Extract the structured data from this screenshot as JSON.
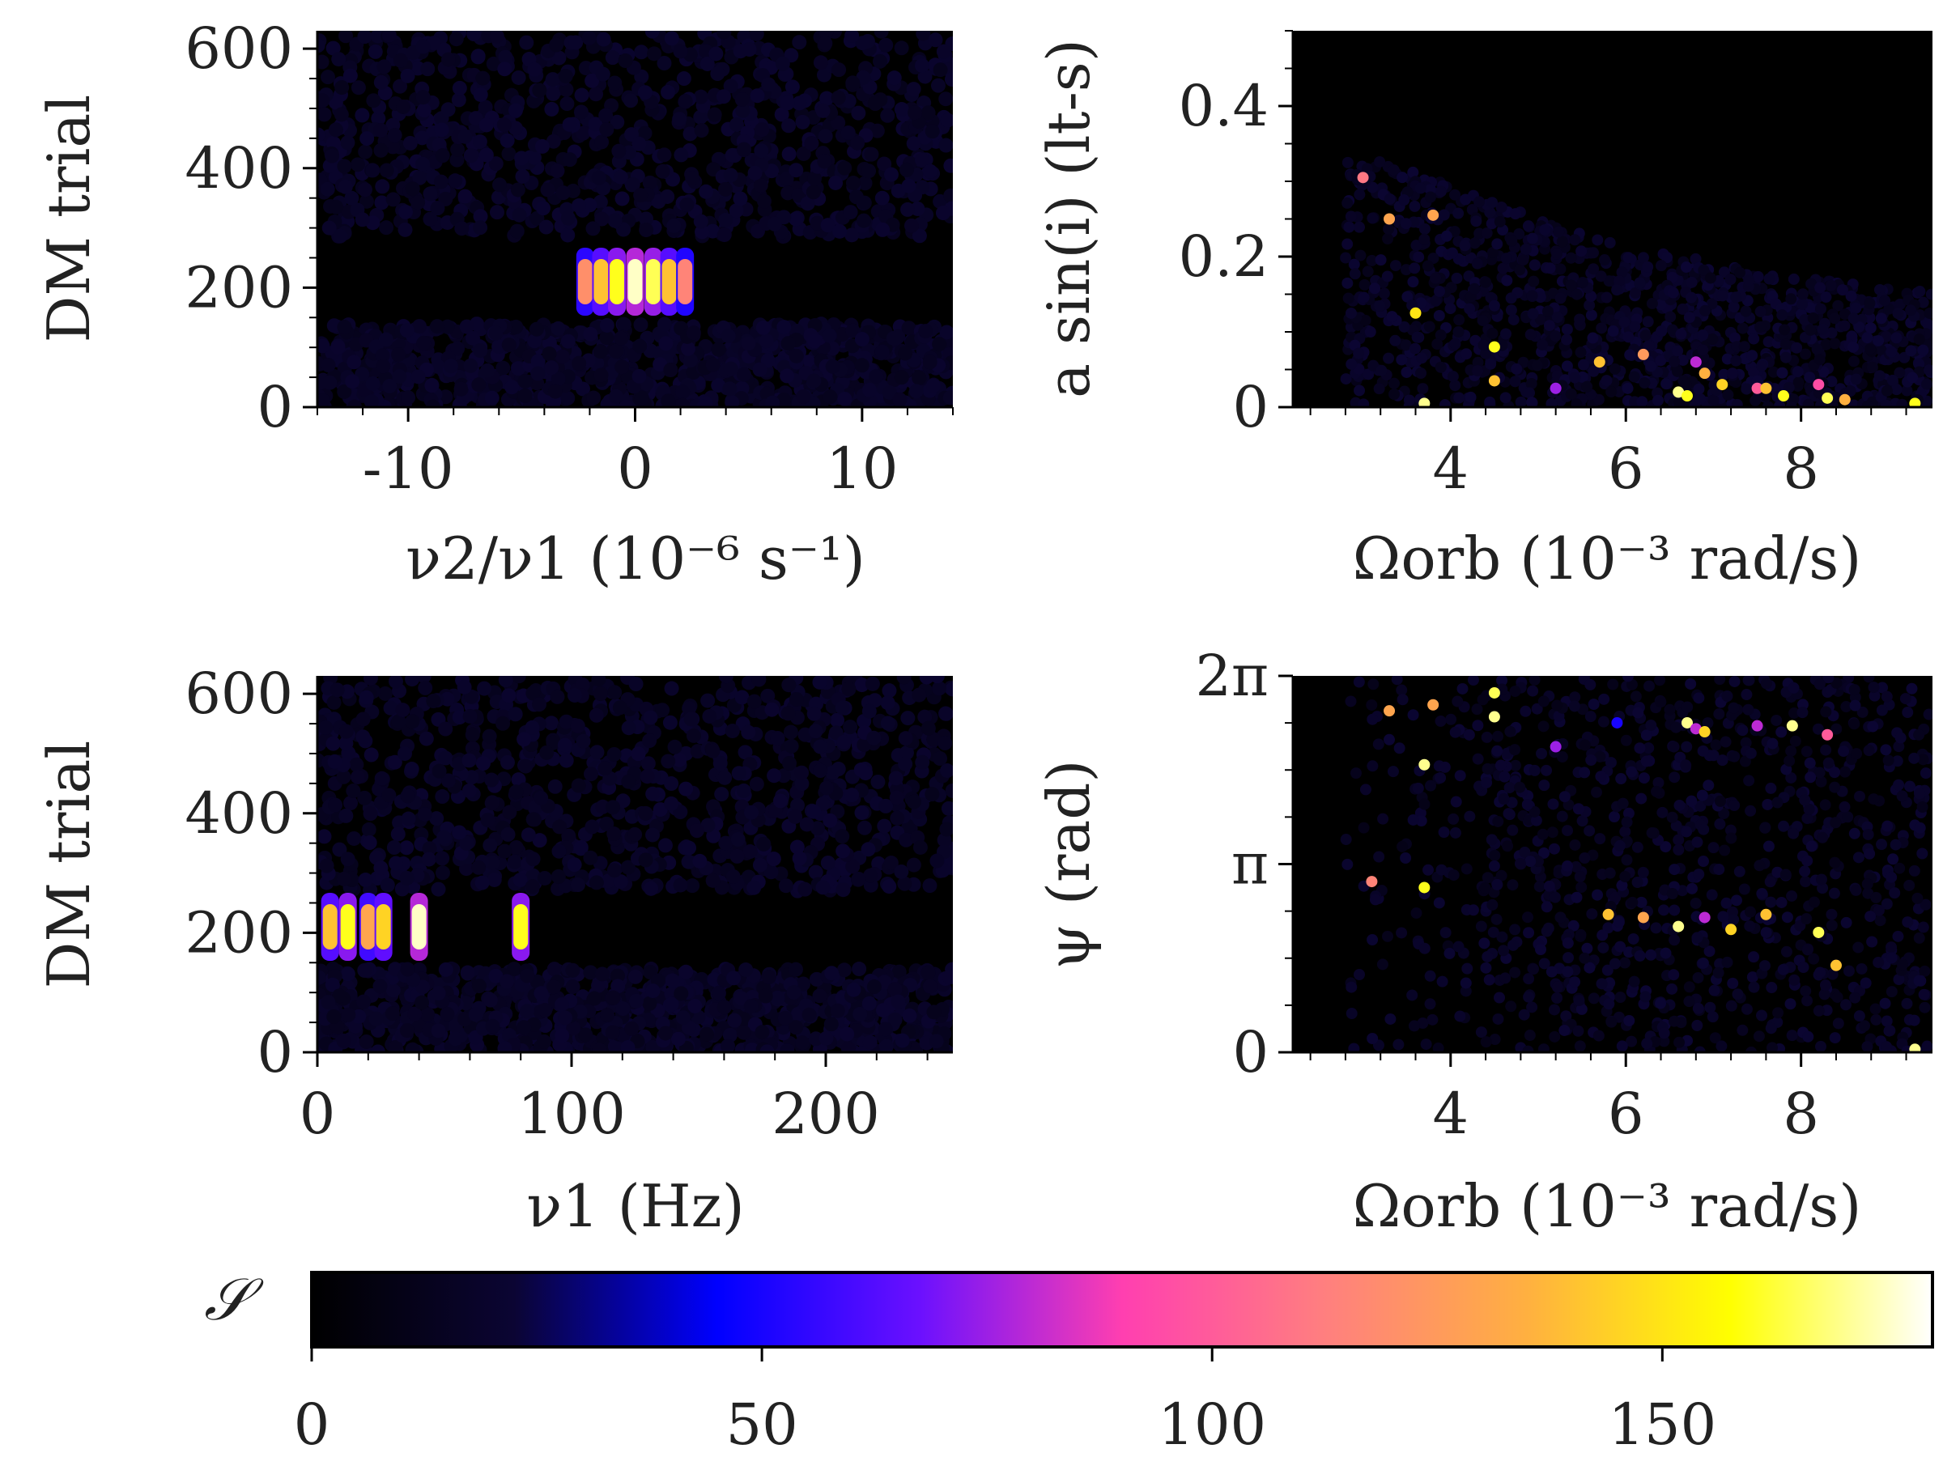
{
  "colorbar": {
    "label": "𝒮",
    "ticks": [
      "0",
      "50",
      "100",
      "150"
    ],
    "range": [
      0,
      180
    ],
    "colors": [
      "#000000",
      "#0b0533",
      "#0000ff",
      "#6b10ff",
      "#ff3fb0",
      "#ff7f7f",
      "#ffb040",
      "#ffff00",
      "#ffffff"
    ]
  },
  "chart_data": [
    {
      "id": "A",
      "type": "scatter",
      "xlabel": "ν2/ν1  (10⁻⁶ s⁻¹)",
      "ylabel": "DM trial",
      "xlim": [
        -14,
        14
      ],
      "ylim": [
        0,
        630
      ],
      "xticks": [
        "-10",
        "0",
        "10"
      ],
      "xtick_values": [
        -10,
        0,
        10
      ],
      "yticks": [
        "0",
        "200",
        "400",
        "600"
      ],
      "ytick_values": [
        0,
        200,
        400,
        600
      ],
      "description": "Background detections at low significance (~15) for DM trials 0-140 and 280-630; bright detections near nu2/nu1 = -2 to 2 at DM ~200.",
      "hot_points": [
        {
          "x": -2.2,
          "y": 210,
          "s": 120
        },
        {
          "x": -1.5,
          "y": 210,
          "s": 140
        },
        {
          "x": -0.8,
          "y": 210,
          "s": 160
        },
        {
          "x": 0.0,
          "y": 210,
          "s": 175
        },
        {
          "x": 0.8,
          "y": 210,
          "s": 165
        },
        {
          "x": 1.5,
          "y": 210,
          "s": 140
        },
        {
          "x": 2.2,
          "y": 210,
          "s": 115
        }
      ]
    },
    {
      "id": "B",
      "type": "scatter",
      "xlabel": "Ωorb  (10⁻³ rad/s)",
      "ylabel": "a sin(i)  (lt-s)",
      "xlim": [
        2.2,
        9.5
      ],
      "ylim": [
        0,
        0.5
      ],
      "xticks": [
        "4",
        "6",
        "8"
      ],
      "xtick_values": [
        4,
        6,
        8
      ],
      "yticks": [
        "0",
        "0.2",
        "0.4"
      ],
      "ytick_values": [
        0,
        0.2,
        0.4
      ],
      "points": [
        {
          "x": 3.0,
          "y": 0.305,
          "s": 110
        },
        {
          "x": 3.3,
          "y": 0.25,
          "s": 130
        },
        {
          "x": 3.8,
          "y": 0.255,
          "s": 130
        },
        {
          "x": 3.6,
          "y": 0.125,
          "s": 150
        },
        {
          "x": 3.7,
          "y": 0.005,
          "s": 170
        },
        {
          "x": 4.5,
          "y": 0.08,
          "s": 160
        },
        {
          "x": 4.5,
          "y": 0.035,
          "s": 140
        },
        {
          "x": 5.2,
          "y": 0.025,
          "s": 75
        },
        {
          "x": 5.7,
          "y": 0.06,
          "s": 140
        },
        {
          "x": 6.2,
          "y": 0.07,
          "s": 125
        },
        {
          "x": 6.6,
          "y": 0.02,
          "s": 170
        },
        {
          "x": 6.7,
          "y": 0.015,
          "s": 160
        },
        {
          "x": 6.8,
          "y": 0.06,
          "s": 80
        },
        {
          "x": 6.9,
          "y": 0.045,
          "s": 135
        },
        {
          "x": 7.1,
          "y": 0.03,
          "s": 145
        },
        {
          "x": 7.5,
          "y": 0.025,
          "s": 100
        },
        {
          "x": 7.6,
          "y": 0.025,
          "s": 140
        },
        {
          "x": 7.8,
          "y": 0.015,
          "s": 160
        },
        {
          "x": 8.2,
          "y": 0.03,
          "s": 95
        },
        {
          "x": 8.3,
          "y": 0.012,
          "s": 165
        },
        {
          "x": 8.5,
          "y": 0.01,
          "s": 135
        },
        {
          "x": 9.3,
          "y": 0.005,
          "s": 160
        }
      ]
    },
    {
      "id": "C",
      "type": "scatter",
      "xlabel": "ν1  (Hz)",
      "ylabel": "DM trial",
      "xlim": [
        0,
        250
      ],
      "ylim": [
        0,
        630
      ],
      "xticks": [
        "0",
        "100",
        "200"
      ],
      "xtick_values": [
        0,
        100,
        200
      ],
      "yticks": [
        "0",
        "200",
        "400",
        "600"
      ],
      "ytick_values": [
        0,
        200,
        400,
        600
      ],
      "description": "Background detections for DM 0-140 and 270-630; bright harmonic columns at DM ~200.",
      "hot_points": [
        {
          "x": 5,
          "y": 210,
          "s": 140
        },
        {
          "x": 12,
          "y": 210,
          "s": 160
        },
        {
          "x": 20,
          "y": 210,
          "s": 130
        },
        {
          "x": 26,
          "y": 210,
          "s": 145
        },
        {
          "x": 40,
          "y": 210,
          "s": 175
        },
        {
          "x": 80,
          "y": 210,
          "s": 160
        }
      ]
    },
    {
      "id": "D",
      "type": "scatter",
      "xlabel": "Ωorb  (10⁻³ rad/s)",
      "ylabel": "ψ  (rad)",
      "xlim": [
        2.2,
        9.5
      ],
      "ylim": [
        0,
        6.283
      ],
      "xticks": [
        "4",
        "6",
        "8"
      ],
      "xtick_values": [
        4,
        6,
        8
      ],
      "yticks": [
        "0",
        "π",
        "2π"
      ],
      "ytick_values": [
        0,
        3.1416,
        6.2832
      ],
      "points": [
        {
          "x": 3.3,
          "y": 5.7,
          "s": 130
        },
        {
          "x": 3.8,
          "y": 5.8,
          "s": 130
        },
        {
          "x": 4.5,
          "y": 6.0,
          "s": 165
        },
        {
          "x": 4.5,
          "y": 5.6,
          "s": 170
        },
        {
          "x": 3.7,
          "y": 4.8,
          "s": 170
        },
        {
          "x": 5.2,
          "y": 5.1,
          "s": 75
        },
        {
          "x": 5.9,
          "y": 5.5,
          "s": 50
        },
        {
          "x": 6.7,
          "y": 5.5,
          "s": 170
        },
        {
          "x": 6.8,
          "y": 5.4,
          "s": 80
        },
        {
          "x": 6.9,
          "y": 5.35,
          "s": 145
        },
        {
          "x": 7.5,
          "y": 5.45,
          "s": 80
        },
        {
          "x": 7.9,
          "y": 5.45,
          "s": 170
        },
        {
          "x": 8.3,
          "y": 5.3,
          "s": 100
        },
        {
          "x": 3.1,
          "y": 2.85,
          "s": 115
        },
        {
          "x": 3.7,
          "y": 2.75,
          "s": 160
        },
        {
          "x": 5.8,
          "y": 2.3,
          "s": 140
        },
        {
          "x": 6.2,
          "y": 2.25,
          "s": 130
        },
        {
          "x": 6.6,
          "y": 2.1,
          "s": 170
        },
        {
          "x": 6.9,
          "y": 2.25,
          "s": 80
        },
        {
          "x": 7.2,
          "y": 2.05,
          "s": 145
        },
        {
          "x": 7.6,
          "y": 2.3,
          "s": 140
        },
        {
          "x": 8.2,
          "y": 2.0,
          "s": 165
        },
        {
          "x": 8.4,
          "y": 1.45,
          "s": 140
        },
        {
          "x": 9.3,
          "y": 0.05,
          "s": 170
        }
      ]
    }
  ]
}
